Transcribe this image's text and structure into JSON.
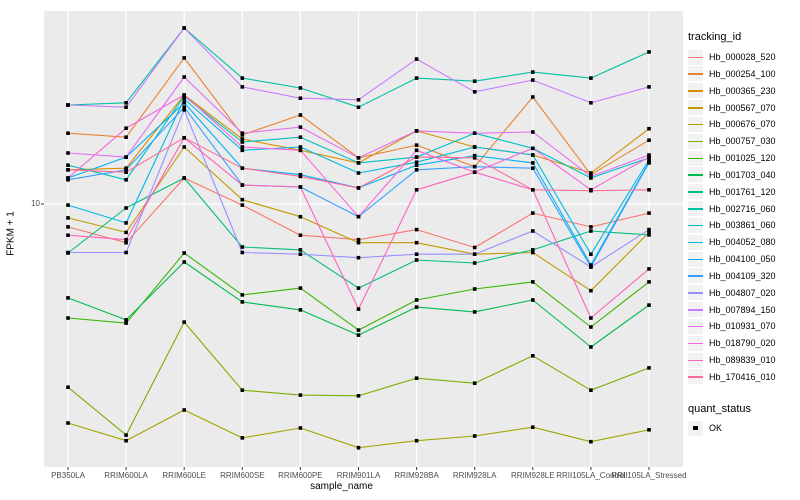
{
  "chart_data": {
    "type": "line",
    "xlabel": "sample_name",
    "ylabel": "FPKM + 1",
    "y_scale": "log10",
    "y_ticks": [
      10
    ],
    "ylim": [
      0.85,
      63
    ],
    "grid": "ggplot-gray-panel-white-gridlines",
    "legend_position": "right",
    "point_marker": "black-square",
    "legend_titles": {
      "tracking": "tracking_id",
      "quant": "quant_status"
    },
    "quant_items": [
      "OK"
    ],
    "categories": [
      "PB350LA",
      "RRIM600LA",
      "RRIM600LE",
      "RRIM600SE",
      "RRIM600PE",
      "RRIM901LA",
      "RRIM928BA",
      "RRIM928LA",
      "RRIM928LE",
      "RRII105LA_Control",
      "RRII105LA_Stressed"
    ],
    "series": [
      {
        "name": "Hb_000028_520",
        "color": "#F8766D",
        "values": [
          8.1,
          7.0,
          12.7,
          9.9,
          7.5,
          7.2,
          7.9,
          6.7,
          9.2,
          8.1,
          9.2
        ]
      },
      {
        "name": "Hb_000254_100",
        "color": "#EA8331",
        "values": [
          19.2,
          18.5,
          38.4,
          18.9,
          22.7,
          15.3,
          17.2,
          14.1,
          26.8,
          13.1,
          18.0
        ]
      },
      {
        "name": "Hb_000365_230",
        "color": "#D89000",
        "values": [
          13.7,
          13.9,
          27.3,
          18.2,
          16.4,
          14.6,
          19.6,
          16.9,
          15.7,
          13.3,
          20.0
        ]
      },
      {
        "name": "Hb_000567_070",
        "color": "#C09B00",
        "values": [
          8.8,
          7.7,
          16.9,
          10.4,
          8.9,
          7.0,
          7.0,
          6.3,
          6.4,
          4.5,
          7.7
        ]
      },
      {
        "name": "Hb_000676_070",
        "color": "#A3A500",
        "values": [
          1.33,
          1.13,
          1.5,
          1.16,
          1.27,
          1.06,
          1.13,
          1.18,
          1.28,
          1.12,
          1.25
        ]
      },
      {
        "name": "Hb_000757_030",
        "color": "#7CAE00",
        "values": [
          1.85,
          1.19,
          3.37,
          1.8,
          1.72,
          1.71,
          2.01,
          1.92,
          2.47,
          1.8,
          2.21
        ]
      },
      {
        "name": "Hb_001025_120",
        "color": "#39B600",
        "values": [
          3.5,
          3.34,
          6.37,
          4.33,
          4.61,
          3.13,
          4.13,
          4.57,
          4.88,
          3.22,
          4.88
        ]
      },
      {
        "name": "Hb_001703_040",
        "color": "#00BB4E",
        "values": [
          4.21,
          3.44,
          5.86,
          4.06,
          3.77,
          2.99,
          3.87,
          3.7,
          4.13,
          2.68,
          3.94
        ]
      },
      {
        "name": "Hb_001761_120",
        "color": "#00BF7D",
        "values": [
          6.37,
          9.64,
          12.7,
          6.73,
          6.55,
          4.61,
          5.97,
          5.81,
          6.55,
          7.8,
          7.52
        ]
      },
      {
        "name": "Hb_002716_060",
        "color": "#00C1A3",
        "values": [
          24.9,
          25.4,
          50.6,
          31.9,
          29.1,
          24.4,
          31.9,
          31.0,
          33.7,
          31.9,
          40.6
        ]
      },
      {
        "name": "Hb_003861_060",
        "color": "#00BFC4",
        "values": [
          14.3,
          12.5,
          27.0,
          17.7,
          18.5,
          14.6,
          15.4,
          19.2,
          16.7,
          12.7,
          15.3
        ]
      },
      {
        "name": "Hb_004052_080",
        "color": "#00BAE0",
        "values": [
          9.9,
          8.4,
          26.3,
          16.4,
          16.9,
          13.3,
          14.7,
          16.9,
          15.7,
          6.3,
          15.0
        ]
      },
      {
        "name": "Hb_004100_050",
        "color": "#00B0F6",
        "values": [
          12.7,
          15.4,
          25.4,
          13.9,
          13.1,
          11.6,
          14.3,
          15.6,
          14.6,
          5.7,
          14.7
        ]
      },
      {
        "name": "Hb_004109_320",
        "color": "#35A2FF",
        "values": [
          12.5,
          13.7,
          24.4,
          11.9,
          11.7,
          8.9,
          13.7,
          14.1,
          13.9,
          5.6,
          14.6
        ]
      },
      {
        "name": "Hb_004807_020",
        "color": "#9590FF",
        "values": [
          6.4,
          6.4,
          23.8,
          6.4,
          6.3,
          6.1,
          6.3,
          6.3,
          7.8,
          5.6,
          7.9
        ]
      },
      {
        "name": "Hb_007894_150",
        "color": "#C77CFF",
        "values": [
          24.9,
          24.4,
          50.6,
          29.4,
          26.5,
          26.1,
          38.0,
          28.1,
          31.3,
          25.4,
          29.4
        ]
      },
      {
        "name": "Hb_010931_070",
        "color": "#E76BF3",
        "values": [
          16.0,
          15.4,
          32.2,
          19.2,
          20.3,
          15.3,
          19.6,
          19.2,
          19.4,
          12.9,
          15.7
        ]
      },
      {
        "name": "Hb_018790_020",
        "color": "#FA62DB",
        "values": [
          12.7,
          20.1,
          27.3,
          16.9,
          16.4,
          8.9,
          16.4,
          13.4,
          16.7,
          11.4,
          15.4
        ]
      },
      {
        "name": "Hb_089839_010",
        "color": "#FF62BC",
        "values": [
          7.5,
          7.2,
          18.4,
          11.9,
          11.7,
          3.8,
          11.4,
          13.4,
          11.4,
          3.5,
          5.5
        ]
      },
      {
        "name": "Hb_170416_010",
        "color": "#FF6A98",
        "values": [
          13.7,
          13.4,
          18.4,
          13.9,
          12.9,
          11.6,
          15.4,
          15.3,
          11.4,
          11.3,
          11.4
        ]
      }
    ]
  }
}
